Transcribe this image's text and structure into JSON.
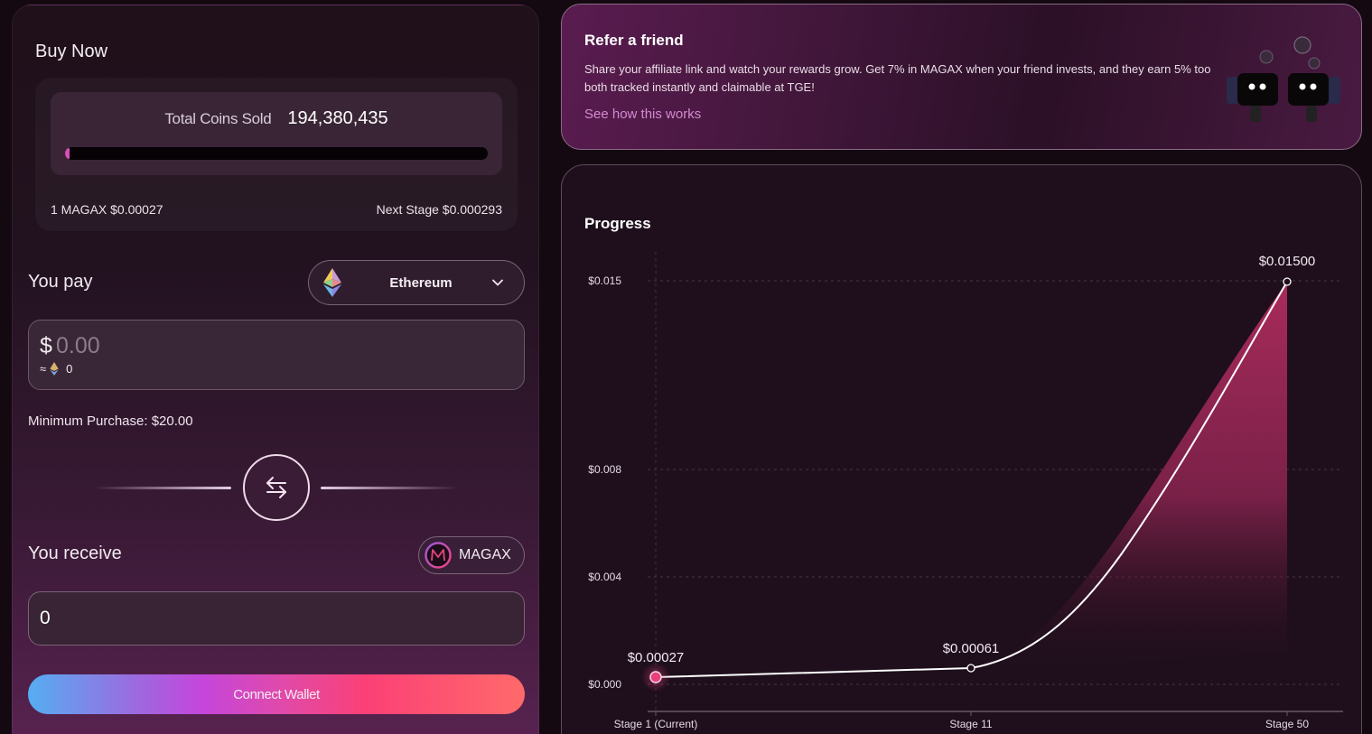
{
  "buy": {
    "title": "Buy Now",
    "total_coins_label": "Total Coins Sold",
    "total_coins_value": "194,380,435",
    "progress_percent": 1,
    "current_price": "1 MAGAX $0.00027",
    "next_stage_price": "Next Stage $0.000293",
    "pay_label": "You pay",
    "currency_select": "Ethereum",
    "pay_currency_symbol": "$",
    "pay_amount_placeholder": "0.00",
    "approx_prefix": "≈",
    "approx_value": "0",
    "min_purchase": "Minimum Purchase: $20.00",
    "receive_label": "You receive",
    "receive_token": "MAGAX",
    "receive_amount": "0",
    "connect_button": "Connect Wallet"
  },
  "refer": {
    "title": "Refer a friend",
    "body": "Share your affiliate link and watch your rewards grow. Get 7% in MAGAX when your friend invests, and they earn 5% too both tracked instantly and claimable at TGE!",
    "link": "See how this works"
  },
  "progress": {
    "title": "Progress"
  },
  "colors": {
    "accent_pink": "#e9407a",
    "gradient_start": "#55aef2",
    "gradient_mid": "#c546dc",
    "gradient_end": "#ff6a6a",
    "panel_bg": "#1f0f1d"
  },
  "chart_data": {
    "type": "area",
    "title": "Progress",
    "categories": [
      "Stage 1 (Current)",
      "Stage 11",
      "Stage 50"
    ],
    "values": [
      0.00027,
      0.00061,
      0.015
    ],
    "point_labels": [
      "$0.00027",
      "$0.00061",
      "$0.01500"
    ],
    "y_ticks": [
      "$0.000",
      "$0.004",
      "$0.008",
      "$0.015"
    ],
    "ylim": [
      0,
      0.015
    ],
    "xlabel": "",
    "ylabel": "",
    "grid": true,
    "legend": "none"
  }
}
